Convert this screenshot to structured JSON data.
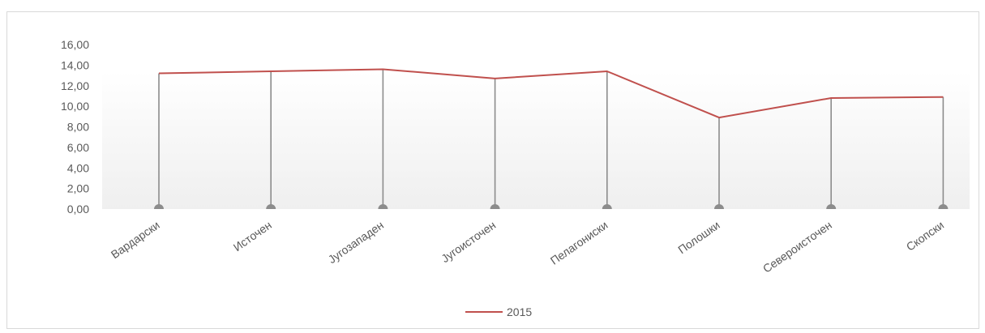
{
  "chart_data": {
    "type": "line",
    "title": "",
    "xlabel": "",
    "ylabel": "",
    "categories": [
      "Вардарски",
      "Источен",
      "Југозападен",
      "Југоисточен",
      "Пелагониски",
      "Полошки",
      "Североисточен",
      "Скопски"
    ],
    "series": [
      {
        "name": "2015",
        "values": [
          13.2,
          13.4,
          13.6,
          12.7,
          13.4,
          8.9,
          10.8,
          10.9
        ],
        "color": "#c0504d"
      }
    ],
    "ylim": [
      0,
      16
    ],
    "yticks": [
      "0,00",
      "2,00",
      "4,00",
      "6,00",
      "8,00",
      "10,00",
      "12,00",
      "14,00",
      "16,00"
    ],
    "drop_lines": true,
    "legend_position": "bottom",
    "colors": {
      "drop_line": "#8c8c8c",
      "background_gradient": "#efefef"
    }
  }
}
